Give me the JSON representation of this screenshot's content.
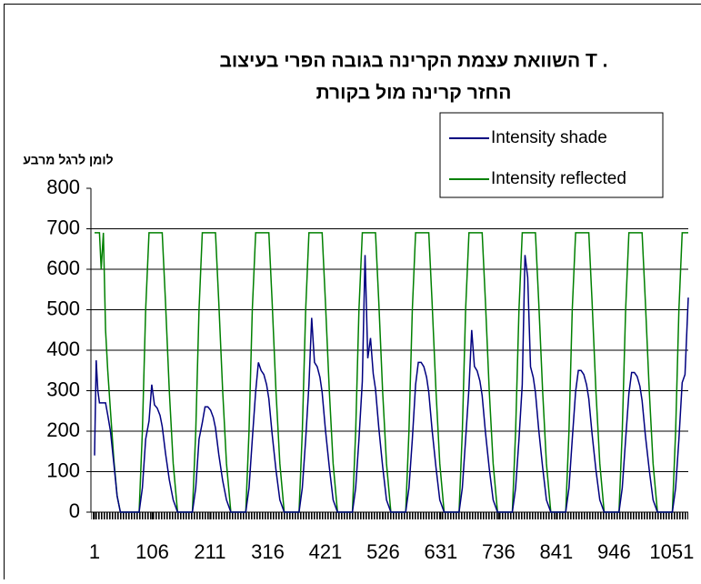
{
  "chart_data": {
    "type": "line",
    "title": "השוואת עצמת הקרינה בגובה הפרי בעיצוב T .",
    "subtitle": "החזר קרינה מול בקורת",
    "y_label": "לומן לרגל מרבע",
    "x": [
      1,
      4,
      7,
      10,
      13,
      17,
      21,
      25,
      30,
      36,
      42,
      48,
      60,
      77,
      82,
      88,
      94,
      100,
      105,
      110,
      115,
      120,
      124,
      130,
      137,
      144,
      152,
      174,
      179,
      185,
      191,
      197,
      202,
      207,
      212,
      217,
      221,
      227,
      234,
      241,
      249,
      271,
      276,
      282,
      288,
      294,
      299,
      304,
      309,
      314,
      318,
      324,
      331,
      338,
      346,
      368,
      373,
      379,
      385,
      391,
      396,
      401,
      406,
      411,
      415,
      421,
      428,
      435,
      443,
      465,
      470,
      476,
      482,
      488,
      493,
      498,
      503,
      508,
      512,
      518,
      525,
      532,
      540,
      562,
      567,
      573,
      579,
      585,
      590,
      595,
      600,
      605,
      609,
      615,
      622,
      629,
      637,
      659,
      664,
      670,
      676,
      682,
      687,
      692,
      697,
      702,
      706,
      712,
      719,
      726,
      734,
      756,
      761,
      767,
      773,
      779,
      784,
      789,
      794,
      799,
      803,
      809,
      816,
      823,
      831,
      853,
      858,
      864,
      870,
      876,
      881,
      886,
      891,
      896,
      900,
      906,
      913,
      920,
      928,
      950,
      955,
      961,
      967,
      973,
      978,
      983,
      988,
      993,
      997,
      1003,
      1010,
      1017,
      1025,
      1047,
      1052,
      1058,
      1064,
      1070,
      1075,
      1081
    ],
    "series": [
      {
        "name": "Intensity shade",
        "color": "#000080",
        "values": [
          140,
          375,
          300,
          270,
          270,
          270,
          270,
          240,
          200,
          120,
          40,
          0,
          0,
          0,
          0,
          60,
          180,
          225,
          315,
          265,
          257,
          239,
          212,
          146,
          80,
          30,
          0,
          0,
          0,
          60,
          180,
          221,
          260,
          260,
          252,
          234,
          208,
          143,
          78,
          30,
          0,
          0,
          0,
          60,
          180,
          298,
          370,
          350,
          340,
          315,
          280,
          193,
          105,
          30,
          0,
          0,
          0,
          60,
          180,
          315,
          480,
          370,
          359,
          333,
          296,
          204,
          111,
          30,
          0,
          0,
          0,
          60,
          180,
          323,
          635,
          380,
          430,
          342,
          304,
          209,
          114,
          30,
          0,
          0,
          0,
          60,
          180,
          315,
          370,
          370,
          359,
          333,
          296,
          204,
          111,
          30,
          0,
          0,
          0,
          60,
          180,
          306,
          450,
          360,
          349,
          324,
          288,
          198,
          108,
          30,
          0,
          0,
          0,
          60,
          180,
          315,
          635,
          580,
          359,
          333,
          296,
          204,
          111,
          30,
          0,
          0,
          0,
          60,
          180,
          298,
          350,
          350,
          340,
          315,
          280,
          193,
          105,
          30,
          0,
          0,
          0,
          60,
          180,
          293,
          345,
          345,
          335,
          311,
          276,
          190,
          104,
          30,
          0,
          0,
          0,
          60,
          180,
          320,
          340,
          530
        ]
      },
      {
        "name": "Intensity reflected",
        "color": "#008000",
        "values": [
          690,
          690,
          690,
          690,
          600,
          690,
          450,
          350,
          250,
          130,
          40,
          0,
          0,
          0,
          0,
          200,
          500,
          690,
          690,
          690,
          690,
          690,
          690,
          520,
          300,
          120,
          0,
          0,
          0,
          200,
          500,
          690,
          690,
          690,
          690,
          690,
          690,
          520,
          300,
          120,
          0,
          0,
          0,
          200,
          500,
          690,
          690,
          690,
          690,
          690,
          690,
          520,
          300,
          120,
          0,
          0,
          0,
          200,
          500,
          690,
          690,
          690,
          690,
          690,
          690,
          520,
          300,
          120,
          0,
          0,
          0,
          200,
          500,
          690,
          690,
          690,
          690,
          690,
          690,
          520,
          300,
          120,
          0,
          0,
          0,
          200,
          500,
          690,
          690,
          690,
          690,
          690,
          690,
          520,
          300,
          120,
          0,
          0,
          0,
          200,
          500,
          690,
          690,
          690,
          690,
          690,
          690,
          520,
          300,
          120,
          0,
          0,
          0,
          200,
          500,
          690,
          690,
          690,
          690,
          690,
          690,
          520,
          300,
          120,
          0,
          0,
          0,
          200,
          500,
          690,
          690,
          690,
          690,
          690,
          690,
          520,
          300,
          120,
          0,
          0,
          0,
          200,
          500,
          690,
          690,
          690,
          690,
          690,
          690,
          520,
          300,
          120,
          0,
          0,
          0,
          200,
          500,
          690,
          690,
          690
        ]
      }
    ],
    "xlim": [
      1,
      1081
    ],
    "xticks": [
      1,
      106,
      211,
      316,
      421,
      526,
      631,
      736,
      841,
      946,
      1051
    ],
    "ylim": [
      0,
      800
    ],
    "yticks": [
      0,
      100,
      200,
      300,
      400,
      500,
      600,
      700,
      800
    ],
    "grid": true,
    "legend": "upper right"
  }
}
